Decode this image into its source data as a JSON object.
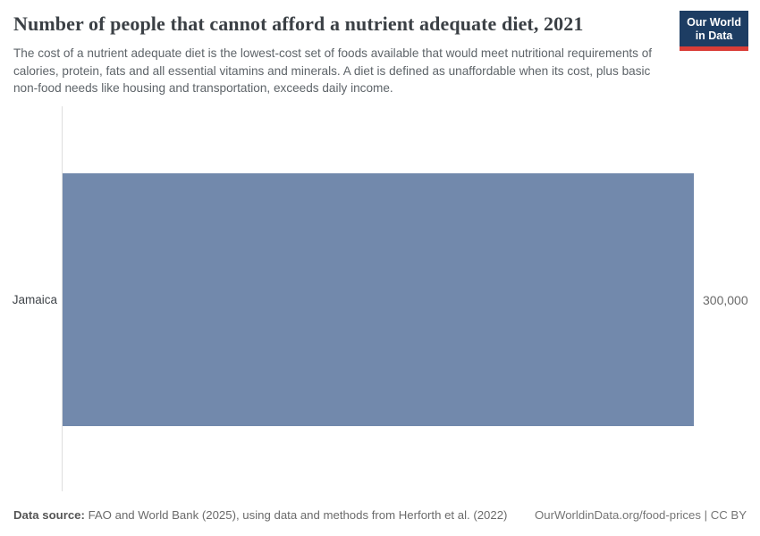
{
  "header": {
    "title": "Number of people that cannot afford a nutrient adequate diet, 2021",
    "subtitle": "The cost of a nutrient adequate diet is the lowest-cost set of foods available that would meet nutritional requirements of calories, protein, fats and all essential vitamins and minerals. A diet is defined as unaffordable when its cost, plus basic non-food needs like housing and transportation, exceeds daily income.",
    "logo": {
      "line1": "Our World",
      "line2": "in Data"
    }
  },
  "chart": {
    "entity_label": "Jamaica",
    "value_label": "300,000"
  },
  "chart_data": {
    "type": "bar",
    "orientation": "horizontal",
    "title": "Number of people that cannot afford a nutrient adequate diet, 2021",
    "categories": [
      "Jamaica"
    ],
    "values": [
      300000
    ],
    "value_labels": [
      "300,000"
    ],
    "xlim": [
      0,
      300000
    ],
    "grid": false,
    "legend": "none",
    "bar_color": "#7289ac"
  },
  "footer": {
    "source_label": "Data source:",
    "source_text": "FAO and World Bank (2025), using data and methods from Herforth et al. (2022)",
    "credit": "OurWorldinData.org/food-prices | CC BY"
  },
  "colors": {
    "bar": "#7289ac",
    "logo_bg": "#1d3d63",
    "logo_accent": "#d93d37",
    "title_text": "#3b4045",
    "axis_line": "#dedede"
  }
}
